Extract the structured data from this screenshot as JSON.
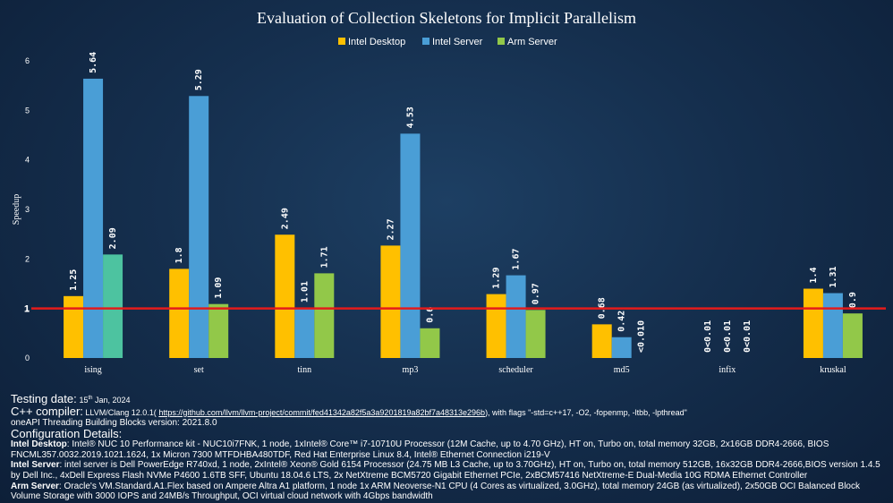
{
  "chart_data": {
    "type": "bar",
    "title": "Evaluation of Collection Skeletons for Implicit Parallelism",
    "ylabel": "Speedup",
    "xlabel": "",
    "ylim": [
      0,
      6
    ],
    "yticks": [
      0,
      1,
      2,
      3,
      4,
      5,
      6
    ],
    "reference_line": 1,
    "legend_position": "top-center",
    "categories": [
      "ising",
      "set",
      "tinn",
      "mp3",
      "scheduler",
      "md5",
      "infix",
      "kruskal"
    ],
    "series": [
      {
        "name": "Intel Desktop",
        "color": "#FFC000",
        "values": [
          1.25,
          1.8,
          2.49,
          2.27,
          1.29,
          0.68,
          0,
          1.4
        ],
        "labels": [
          "1.25",
          "1.8",
          "2.49",
          "2.27",
          "1.29",
          "0.68",
          "0<0.01",
          "1.4"
        ]
      },
      {
        "name": "Intel Server",
        "color": "#4A9ED6",
        "values": [
          5.64,
          5.29,
          1.01,
          4.53,
          1.67,
          0.42,
          0,
          1.31
        ],
        "labels": [
          "5.64",
          "5.29",
          "1.01",
          "4.53",
          "1.67",
          "0.42",
          "0<0.01",
          "1.31"
        ]
      },
      {
        "name": "Arm Server",
        "color": "#92C849",
        "values": [
          2.09,
          1.09,
          1.71,
          0.6,
          0.97,
          0,
          0,
          0.9
        ],
        "labels": [
          "2.09",
          "1.09",
          "1.71",
          "0.6",
          "0.97",
          "<0.010",
          "0<0.01",
          "0.9"
        ]
      }
    ],
    "special_bar_colors": {
      "ising:Arm Server": "#4DC3A0"
    }
  },
  "notes": {
    "testing_date_label": "Testing date:",
    "testing_date_day": "15",
    "testing_date_suffix": "th",
    "testing_date_rest": " Jan, 2024",
    "compiler_label": "C++ compiler:",
    "compiler_pre": " LLVM/Clang 12.0.1( ",
    "compiler_link": "https://github.com/llvm/llvm-project/commit/fed41342a82f5a3a9201819a82bf7a48313e296b",
    "compiler_post": "), with flags \"-std=c++17, -O2, -fopenmp, -ltbb, -lpthread\"",
    "tbb_line": "oneAPI Threading Building Blocks version: 2021.8.0",
    "config_heading": "Configuration Details:",
    "desktop_label": "Intel Desktop",
    "desktop_text": ": Intel® NUC 10 Performance kit - NUC10i7FNK, 1 node, 1xIntel® Core™ i7-10710U Processor (12M Cache, up to 4.70 GHz), HT on, Turbo on, total memory 32GB, 2x16GB DDR4-2666, BIOS FNCML357.0032.2019.1021.1624, 1x Micron 7300 MTFDHBA480TDF, Red Hat Enterprise Linux 8.4, Intel® Ethernet Connection i219-V",
    "server_label": "Intel Server",
    "server_text": ": intel server is Dell PowerEdge R740xd, 1 node, 2xIntel® Xeon® Gold 6154 Processor (24.75 MB L3 Cache, up to 3.70GHz), HT on, Turbo on, total memory 512GB, 16x32GB DDR4-2666,BIOS version 1.4.5 by Dell Inc., 4xDell Express Flash NVMe P4600 1.6TB SFF, Ubuntu 18.04.6 LTS, 2x NetXtreme BCM5720 Gigabit Ethernet PCIe, 2xBCM57416 NetXtreme-E Dual-Media 10G RDMA Ethernet Controller",
    "arm_label": "Arm Server",
    "arm_text": ": Oracle's VM.Standard.A1.Flex based on Ampere Altra A1 platform, 1 node 1x ARM Neoverse-N1 CPU (4 Cores as virtualized, 3.0GHz), total memory 24GB (as virtualized), 2x50GB OCI Balanced Block Volume Storage with 3000 IOPS and 24MB/s Throughput, OCI virtual cloud network with 4Gbps bandwidth"
  }
}
